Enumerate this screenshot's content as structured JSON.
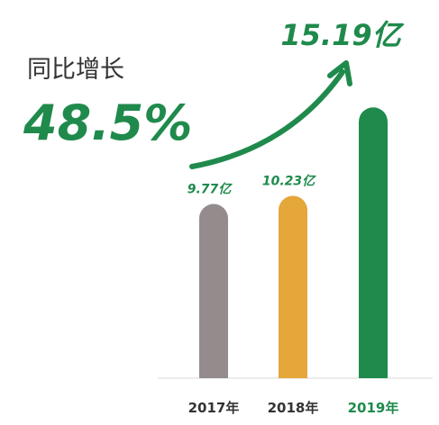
{
  "chart_data": {
    "type": "bar",
    "annotations": [
      "同比增长",
      "48.5%"
    ],
    "categories": [
      "2017年",
      "2018年",
      "2019年"
    ],
    "values": [
      9.77,
      10.23,
      15.19
    ],
    "value_labels": [
      "9.77亿",
      "10.23亿",
      "15.19亿"
    ],
    "colors": [
      "#948c8c",
      "#e5a63a",
      "#1f8a4c"
    ],
    "category_label_colors": [
      "#333333",
      "#333333",
      "#1f8a4c"
    ],
    "label_color": "#1f8a4c"
  }
}
